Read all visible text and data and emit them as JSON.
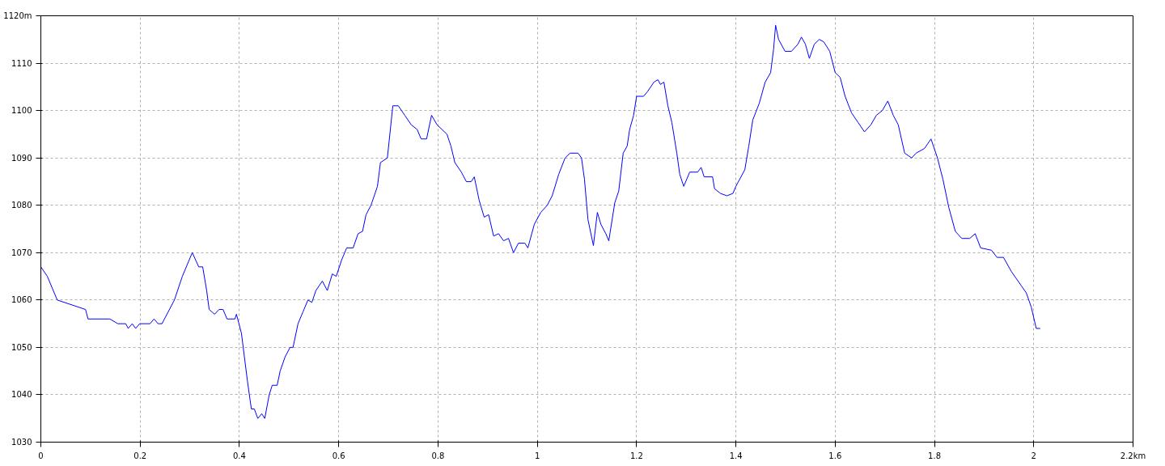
{
  "chart_data": {
    "type": "line",
    "xlim": [
      0,
      2.2
    ],
    "ylim": [
      1030,
      1120
    ],
    "xticks": [
      0,
      0.2,
      0.4,
      0.6,
      0.8,
      1,
      1.2,
      1.4,
      1.6,
      1.8,
      2,
      {
        "value": 2.2,
        "label": "2.2km"
      }
    ],
    "yticks": [
      1030,
      1040,
      1050,
      1060,
      1070,
      1080,
      1090,
      1100,
      1110,
      {
        "value": 1120,
        "label": "1120m"
      }
    ],
    "grid": true,
    "marker": "none",
    "line_style": "solid",
    "series": [
      {
        "color": "#0000ff",
        "x": [
          0,
          0.013,
          0.033,
          0.09,
          0.095,
          0.139,
          0.155,
          0.171,
          0.176,
          0.184,
          0.191,
          0.199,
          0.22,
          0.228,
          0.236,
          0.244,
          0.269,
          0.285,
          0.305,
          0.318,
          0.326,
          0.334,
          0.339,
          0.35,
          0.359,
          0.367,
          0.375,
          0.391,
          0.394,
          0.404,
          0.41,
          0.416,
          0.424,
          0.43,
          0.437,
          0.445,
          0.451,
          0.46,
          0.466,
          0.476,
          0.482,
          0.492,
          0.502,
          0.508,
          0.518,
          0.528,
          0.538,
          0.546,
          0.554,
          0.567,
          0.577,
          0.587,
          0.595,
          0.606,
          0.616,
          0.629,
          0.639,
          0.648,
          0.655,
          0.665,
          0.678,
          0.684,
          0.698,
          0.709,
          0.72,
          0.733,
          0.746,
          0.758,
          0.766,
          0.777,
          0.787,
          0.798,
          0.818,
          0.826,
          0.834,
          0.847,
          0.857,
          0.867,
          0.873,
          0.883,
          0.893,
          0.902,
          0.912,
          0.922,
          0.932,
          0.942,
          0.952,
          0.962,
          0.975,
          0.981,
          0.994,
          1.007,
          1.02,
          1.03,
          1.043,
          1.056,
          1.066,
          1.082,
          1.089,
          1.095,
          1.102,
          1.113,
          1.121,
          1.128,
          1.138,
          1.144,
          1.156,
          1.164,
          1.173,
          1.181,
          1.186,
          1.194,
          1.2,
          1.214,
          1.222,
          1.235,
          1.243,
          1.248,
          1.255,
          1.263,
          1.271,
          1.281,
          1.287,
          1.295,
          1.307,
          1.323,
          1.33,
          1.336,
          1.353,
          1.357,
          1.369,
          1.382,
          1.394,
          1.4,
          1.418,
          1.426,
          1.434,
          1.447,
          1.459,
          1.47,
          1.476,
          1.48,
          1.486,
          1.499,
          1.512,
          1.525,
          1.532,
          1.54,
          1.548,
          1.558,
          1.568,
          1.577,
          1.589,
          1.6,
          1.61,
          1.62,
          1.633,
          1.646,
          1.659,
          1.672,
          1.683,
          1.695,
          1.706,
          1.717,
          1.727,
          1.74,
          1.754,
          1.763,
          1.78,
          1.793,
          1.806,
          1.817,
          1.829,
          1.842,
          1.855,
          1.871,
          1.882,
          1.893,
          1.915,
          1.926,
          1.939,
          1.955,
          1.975,
          1.985,
          1.995,
          2.005,
          2.013
        ],
        "values": [
          1067,
          1065,
          1060,
          1058,
          1056,
          1056,
          1055,
          1055,
          1054,
          1055,
          1054,
          1055,
          1055,
          1056,
          1055,
          1055,
          1060,
          1065,
          1070,
          1067,
          1067,
          1062,
          1058,
          1057,
          1058,
          1058,
          1056,
          1056,
          1057,
          1053,
          1048,
          1043,
          1037,
          1037,
          1035,
          1036,
          1035,
          1040,
          1042,
          1042,
          1045,
          1048,
          1050,
          1050,
          1055,
          1057.5,
          1060,
          1059.5,
          1062,
          1064,
          1062,
          1065.5,
          1065,
          1068.5,
          1071,
          1071,
          1074,
          1074.5,
          1078,
          1080,
          1084,
          1089,
          1090,
          1101,
          1101,
          1099,
          1097,
          1096,
          1094,
          1094,
          1099,
          1097,
          1095,
          1092.5,
          1089,
          1087,
          1085,
          1085,
          1086,
          1081,
          1077.5,
          1078,
          1073.5,
          1074,
          1072.5,
          1073,
          1070,
          1072,
          1072,
          1071,
          1076,
          1078.5,
          1080,
          1082,
          1086.5,
          1090,
          1091,
          1091,
          1090,
          1085.5,
          1077,
          1071.5,
          1078.5,
          1076,
          1074,
          1072.5,
          1080.5,
          1083,
          1091,
          1092.5,
          1096,
          1099,
          1103,
          1103,
          1104,
          1106,
          1106.5,
          1105.5,
          1106,
          1101,
          1097.5,
          1091,
          1086.5,
          1084,
          1087,
          1087,
          1088,
          1086,
          1086,
          1083.5,
          1082.5,
          1082,
          1082.5,
          1084,
          1087.5,
          1092.5,
          1098,
          1101.5,
          1106,
          1108,
          1113,
          1118,
          1115,
          1112.5,
          1112.5,
          1114,
          1115.5,
          1114,
          1111,
          1114,
          1115,
          1114.5,
          1112.5,
          1108,
          1107,
          1103,
          1099.5,
          1097.5,
          1095.5,
          1097,
          1099,
          1100,
          1102,
          1099,
          1097,
          1091,
          1090,
          1091,
          1092,
          1094,
          1090,
          1085.5,
          1079.5,
          1074.5,
          1073,
          1073,
          1074,
          1071,
          1070.5,
          1069,
          1069,
          1066,
          1063,
          1061.5,
          1058.5,
          1054,
          1054
        ]
      }
    ]
  }
}
